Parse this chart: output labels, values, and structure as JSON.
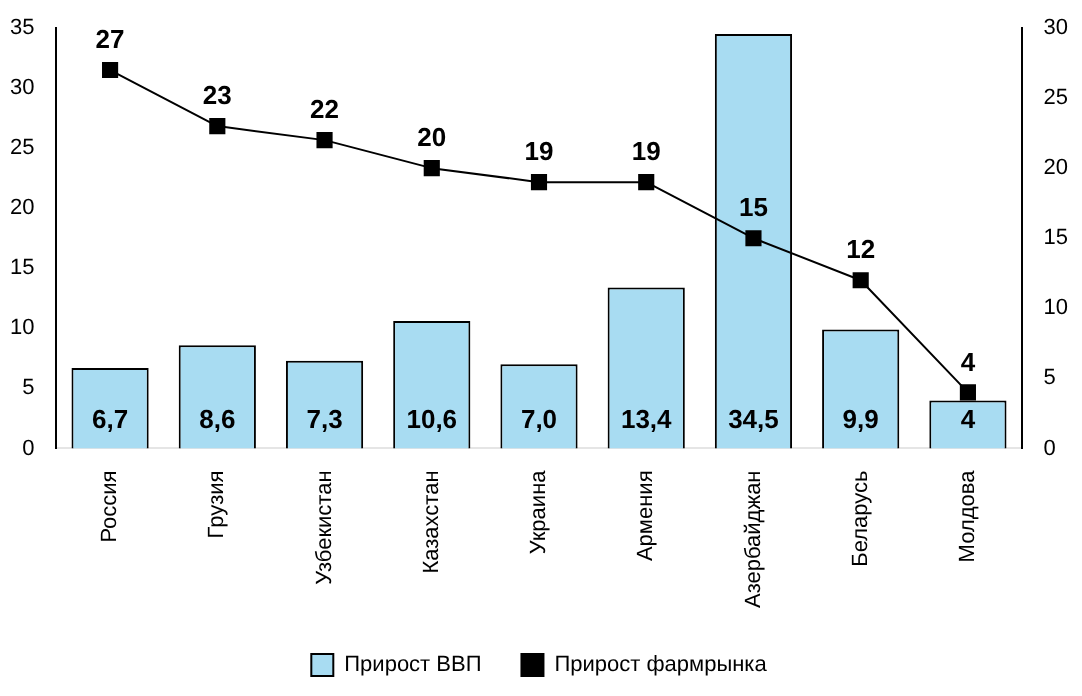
{
  "chart_data": {
    "type": "bar",
    "categories": [
      "Россия",
      "Грузия",
      "Узбекистан",
      "Казахстан",
      "Украина",
      "Армения",
      "Азербайджан",
      "Беларусь",
      "Молдова"
    ],
    "series": [
      {
        "name": "Прирост ВВП",
        "color": "#a8dcf2",
        "values": [
          6.7,
          8.6,
          7.3,
          10.6,
          7.0,
          13.4,
          34.5,
          9.9,
          4
        ],
        "value_labels": [
          "6,7",
          "8,6",
          "7,3",
          "10,6",
          "7,0",
          "13,4",
          "34,5",
          "9,9",
          "4"
        ]
      },
      {
        "name": "Прирост фармрынка",
        "type": "line",
        "axis": "y2",
        "color": "#000000",
        "values": [
          27,
          23,
          22,
          20,
          19,
          19,
          15,
          12,
          4
        ],
        "value_labels": [
          "27",
          "23",
          "22",
          "20",
          "19",
          "19",
          "15",
          "12",
          "4"
        ]
      }
    ],
    "ylim": [
      0,
      35
    ],
    "yticks": [
      0,
      5,
      10,
      15,
      20,
      25,
      30,
      35
    ],
    "y2lim": [
      0,
      30
    ],
    "y2ticks": [
      0,
      5,
      10,
      15,
      20,
      25,
      30
    ],
    "grid": false,
    "legend": "bottom",
    "marker": "square",
    "line_style": "solid"
  }
}
